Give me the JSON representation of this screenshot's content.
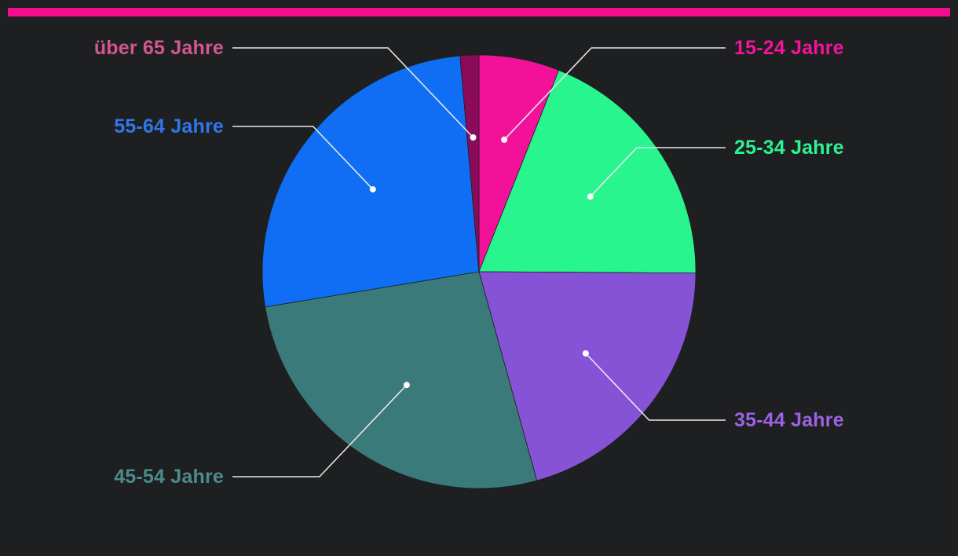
{
  "accent_color": "#f20d8c",
  "chart_data": {
    "type": "pie",
    "start_angle_deg": 0,
    "direction": "clockwise",
    "legend": "none",
    "slices": [
      {
        "label": "15-24 Jahre",
        "value": 6.0,
        "color": "#f4119a",
        "label_color": "#f4139a",
        "label_side": "right"
      },
      {
        "label": "25-34 Jahre",
        "value": 19.1,
        "color": "#29f58f",
        "label_color": "#2bf592",
        "label_side": "right"
      },
      {
        "label": "35-44 Jahre",
        "value": 20.6,
        "color": "#8753d6",
        "label_color": "#9b63e4",
        "label_side": "right"
      },
      {
        "label": "45-54 Jahre",
        "value": 26.7,
        "color": "#3b7a7a",
        "label_color": "#4d8a8b",
        "label_side": "left"
      },
      {
        "label": "55-64 Jahre",
        "value": 26.2,
        "color": "#0f6ef4",
        "label_color": "#2f77ea",
        "label_side": "left"
      },
      {
        "label": "über 65 Jahre",
        "value": 1.4,
        "color": "#8b0b5b",
        "label_color": "#d2578f",
        "label_side": "left"
      }
    ]
  }
}
